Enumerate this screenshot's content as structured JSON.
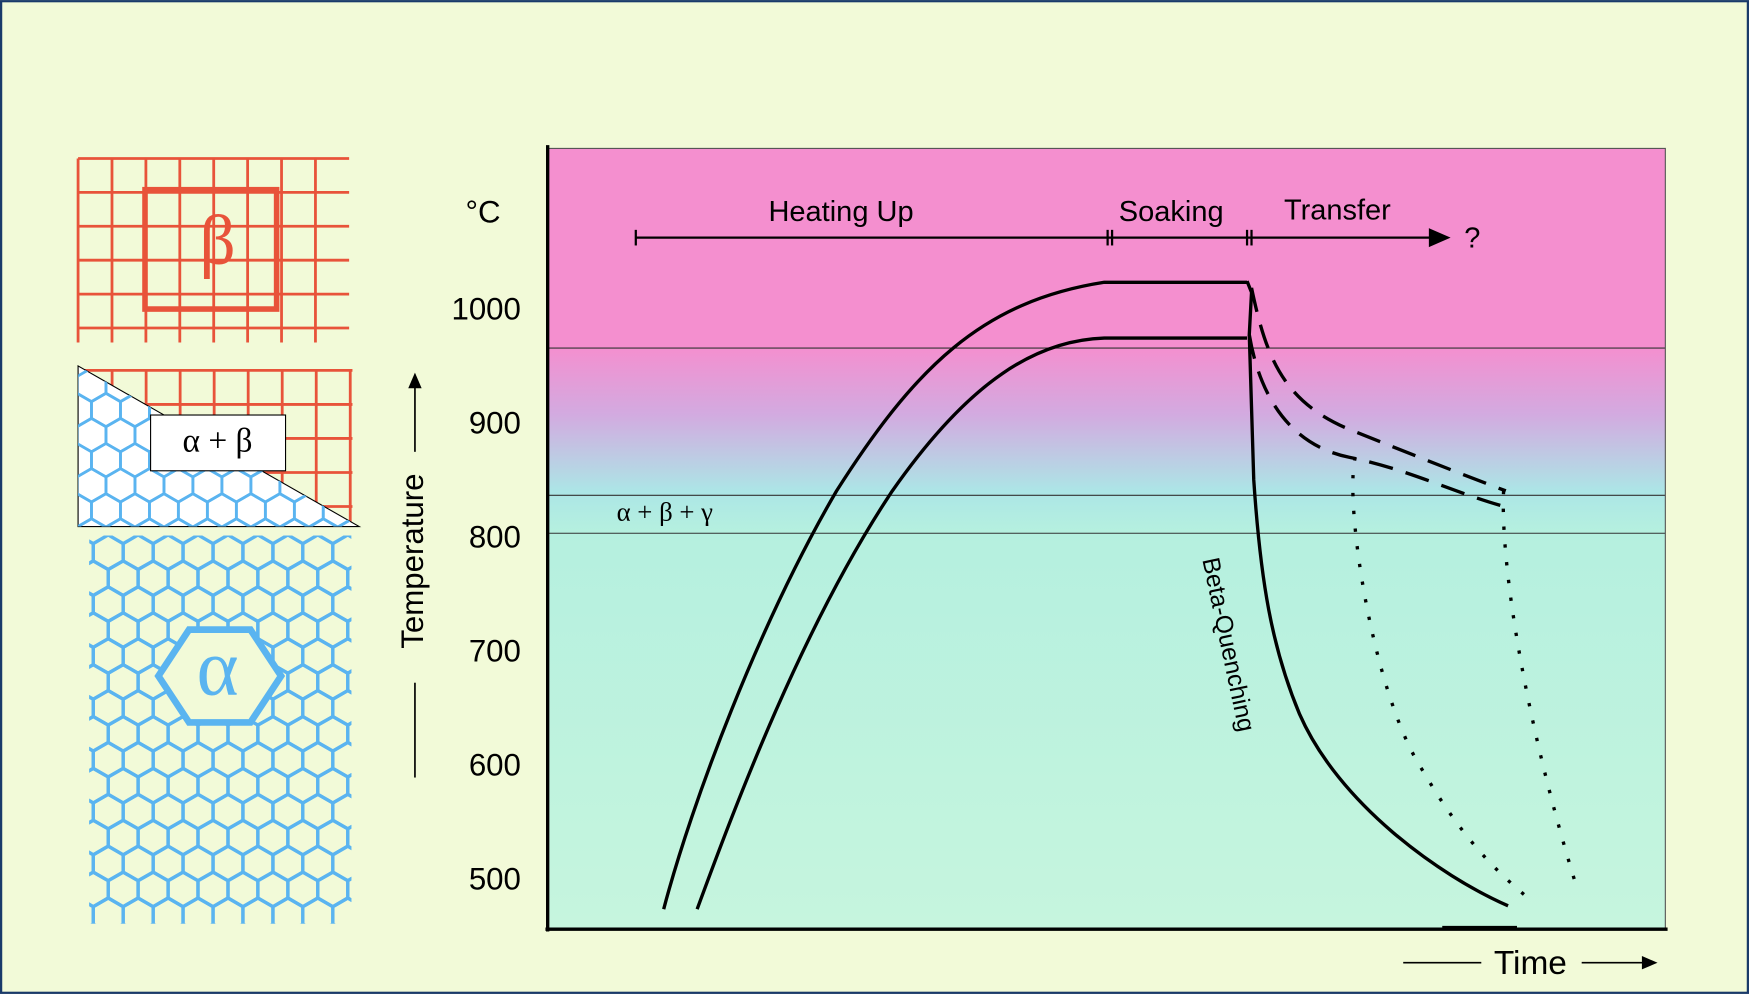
{
  "chart_data": {
    "type": "line",
    "unit": "°C",
    "ylabel": "Temperature",
    "xlabel": "Time",
    "ylim": [
      458,
      1143
    ],
    "yticks": [
      500,
      600,
      700,
      800,
      900,
      1000
    ],
    "phases": [
      "Heating Up",
      "Soaking",
      "Transfer",
      "?"
    ],
    "quench_label": "Beta-Quenching",
    "region_label": "α + β + γ"
  },
  "microstructures": {
    "beta": "β",
    "alpha_beta": "α + β",
    "alpha": "α"
  }
}
